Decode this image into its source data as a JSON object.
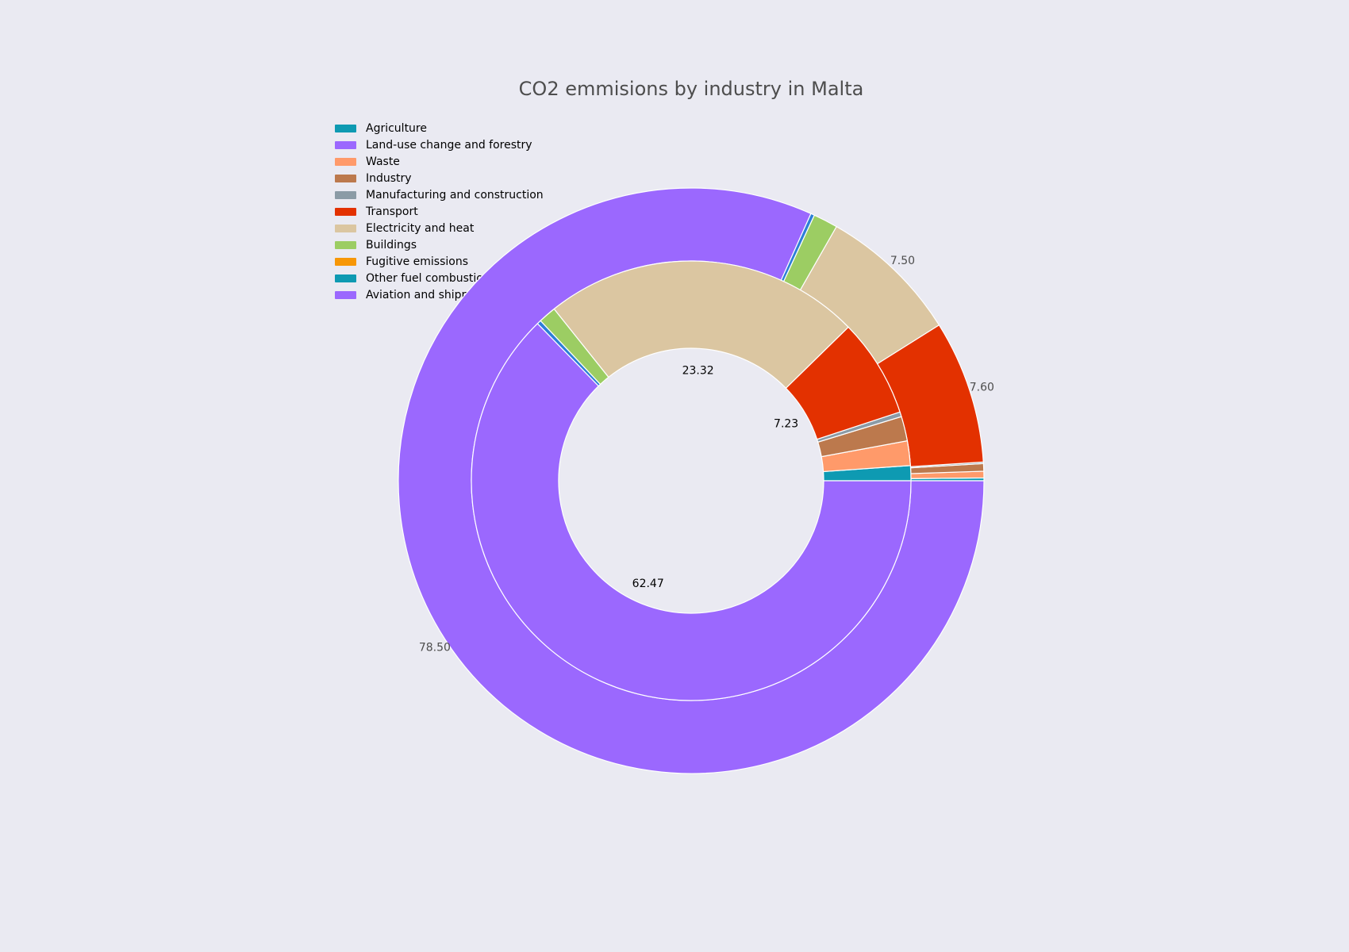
{
  "chart_data": {
    "type": "pie",
    "title": "CO2 emmisions by industry in Malta",
    "legend": {
      "placement": "top-left",
      "items": [
        {
          "label": "Agriculture",
          "color": "#0E9AB2"
        },
        {
          "label": "Land-use change and forestry",
          "color": "#9B68FE"
        },
        {
          "label": "Waste",
          "color": "#FF9A6A"
        },
        {
          "label": "Industry",
          "color": "#BC794D"
        },
        {
          "label": "Manufacturing and construction",
          "color": "#8B9BA6"
        },
        {
          "label": "Transport",
          "color": "#E33100"
        },
        {
          "label": "Electricity and heat",
          "color": "#DBC6A1"
        },
        {
          "label": "Buildings",
          "color": "#9CCD63"
        },
        {
          "label": "Fugitive emissions",
          "color": "#F79707"
        },
        {
          "label": "Other fuel combustion",
          "color": "#0E9AB2"
        },
        {
          "label": "Aviation and shipping",
          "color": "#9B68FE"
        }
      ]
    },
    "rings": [
      {
        "name": "outer",
        "labels": [
          "Agriculture",
          "Land-use change and forestry",
          "Waste",
          "Industry",
          "Manufacturing and construction",
          "Transport",
          "Electricity and heat",
          "Buildings",
          "Fugitive emissions",
          "Other fuel combustion",
          "Aviation and shipping"
        ],
        "values": [
          0.15,
          0,
          0.35,
          0.4,
          0.08,
          7.6,
          7.5,
          1.3,
          0,
          0.2,
          78.5
        ],
        "colors": [
          "#0E9AB2",
          "#9B68FE",
          "#FF9A6A",
          "#BC794D",
          "#8B9BA6",
          "#E33100",
          "#DBC6A1",
          "#9CCD63",
          "#F79707",
          "#2D7FD6",
          "#9B68FE"
        ],
        "value_labels": [
          {
            "text": "7.50",
            "index": 6
          },
          {
            "text": "7.60",
            "index": 5
          },
          {
            "text": "78.50",
            "index": 10
          }
        ]
      },
      {
        "name": "inner",
        "labels": [
          "Agriculture",
          "Land-use change and forestry",
          "Waste",
          "Industry",
          "Manufacturing and construction",
          "Transport",
          "Electricity and heat",
          "Buildings",
          "Fugitive emissions",
          "Other fuel combustion",
          "Aviation and shipping"
        ],
        "values": [
          1.1,
          0,
          1.8,
          1.8,
          0.35,
          7.23,
          23.32,
          1.3,
          0,
          0.3,
          62.47
        ],
        "colors": [
          "#0E9AB2",
          "#9B68FE",
          "#FF9A6A",
          "#BC794D",
          "#8B9BA6",
          "#E33100",
          "#DBC6A1",
          "#9CCD63",
          "#F79707",
          "#2D7FD6",
          "#9B68FE"
        ],
        "value_labels": [
          {
            "text": "23.32",
            "index": 6
          },
          {
            "text": "7.23",
            "index": 5
          },
          {
            "text": "62.47",
            "index": 10
          }
        ]
      }
    ]
  }
}
